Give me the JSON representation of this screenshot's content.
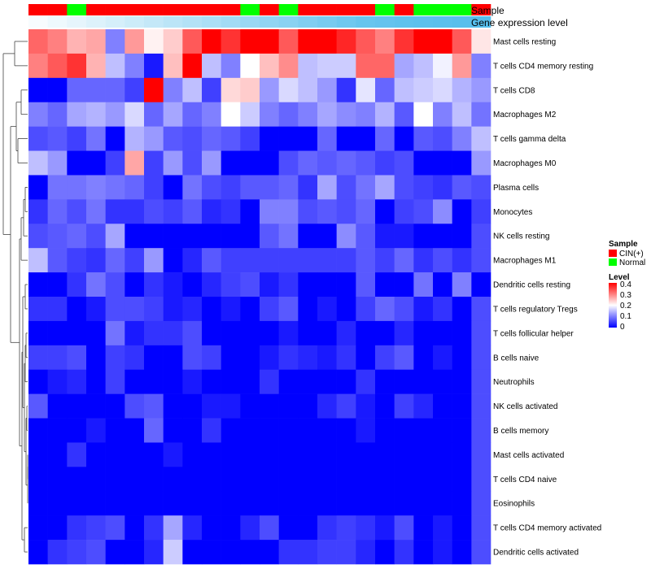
{
  "chart_data": {
    "type": "heatmap",
    "annotation_labels": {
      "sample": "Sample",
      "expression": "Gene expression level"
    },
    "legend": {
      "sample_title": "Sample",
      "groups": [
        {
          "label": "CIN(+)",
          "color": "#ff0000"
        },
        {
          "label": "Normal",
          "color": "#00ff00"
        }
      ],
      "level_title": "Level",
      "level_ticks": [
        "0.4",
        "0.3",
        "0.2",
        "0.1",
        "0"
      ],
      "level_range": [
        0,
        0.4
      ],
      "colors": {
        "low": "#0000ff",
        "mid": "#ffffff",
        "high": "#ff0000"
      }
    },
    "column_groups": [
      "CIN(+)",
      "CIN(+)",
      "Normal",
      "CIN(+)",
      "CIN(+)",
      "CIN(+)",
      "CIN(+)",
      "CIN(+)",
      "CIN(+)",
      "CIN(+)",
      "CIN(+)",
      "Normal",
      "CIN(+)",
      "Normal",
      "CIN(+)",
      "CIN(+)",
      "CIN(+)",
      "CIN(+)",
      "Normal",
      "CIN(+)",
      "Normal",
      "Normal",
      "Normal",
      "CIN(+)"
    ],
    "expression_level": [
      0.05,
      0.1,
      0.15,
      0.2,
      0.25,
      0.3,
      0.35,
      0.4,
      0.45,
      0.5,
      0.55,
      0.6,
      0.65,
      0.7,
      0.75,
      0.8,
      0.85,
      0.9,
      0.92,
      0.94,
      0.96,
      0.97,
      0.98,
      1.0
    ],
    "rows": [
      "Mast cells resting",
      "T cells CD4 memory resting",
      "T cells CD8",
      "Macrophages M2",
      "T cells gamma delta",
      "Macrophages M0",
      "Plasma cells",
      "Monocytes",
      "NK cells resting",
      "Macrophages M1",
      "Dendritic cells resting",
      "T cells regulatory  Tregs",
      "T cells follicular helper",
      "B cells naive",
      "Neutrophils",
      "NK cells activated",
      "B cells memory",
      "Mast cells activated",
      "T cells CD4 naive",
      "Eosinophils",
      "T cells CD4 memory activated",
      "Dendritic cells activated"
    ],
    "values": [
      [
        0.32,
        0.3,
        0.26,
        0.27,
        0.1,
        0.28,
        0.21,
        0.24,
        0.33,
        0.4,
        0.36,
        0.4,
        0.4,
        0.33,
        0.4,
        0.4,
        0.37,
        0.33,
        0.3,
        0.36,
        0.4,
        0.4,
        0.33,
        0.22
      ],
      [
        0.3,
        0.33,
        0.36,
        0.26,
        0.15,
        0.1,
        0.02,
        0.25,
        0.4,
        0.15,
        0.1,
        0.2,
        0.25,
        0.29,
        0.15,
        0.16,
        0.16,
        0.32,
        0.32,
        0.13,
        0.15,
        0.19,
        0.28,
        0.1
      ],
      [
        0.0,
        0.0,
        0.08,
        0.08,
        0.08,
        0.05,
        0.4,
        0.1,
        0.15,
        0.05,
        0.23,
        0.24,
        0.12,
        0.17,
        0.15,
        0.12,
        0.04,
        0.18,
        0.08,
        0.15,
        0.16,
        0.17,
        0.14,
        0.12
      ],
      [
        0.1,
        0.08,
        0.13,
        0.14,
        0.12,
        0.17,
        0.08,
        0.13,
        0.08,
        0.1,
        0.2,
        0.16,
        0.1,
        0.08,
        0.1,
        0.13,
        0.11,
        0.1,
        0.14,
        0.07,
        0.2,
        0.1,
        0.15,
        0.09
      ],
      [
        0.06,
        0.07,
        0.05,
        0.09,
        0.0,
        0.14,
        0.12,
        0.07,
        0.06,
        0.08,
        0.07,
        0.05,
        0.0,
        0.0,
        0.0,
        0.08,
        0.0,
        0.0,
        0.08,
        0.0,
        0.07,
        0.06,
        0.1,
        0.15
      ],
      [
        0.15,
        0.12,
        0.0,
        0.0,
        0.05,
        0.27,
        0.05,
        0.12,
        0.06,
        0.12,
        0.0,
        0.0,
        0.0,
        0.06,
        0.08,
        0.07,
        0.08,
        0.07,
        0.05,
        0.06,
        0.0,
        0.0,
        0.0,
        0.12
      ],
      [
        0.0,
        0.09,
        0.09,
        0.1,
        0.09,
        0.08,
        0.05,
        0.0,
        0.09,
        0.06,
        0.05,
        0.07,
        0.07,
        0.08,
        0.04,
        0.13,
        0.06,
        0.09,
        0.13,
        0.06,
        0.05,
        0.04,
        0.07,
        0.06
      ],
      [
        0.04,
        0.08,
        0.06,
        0.09,
        0.04,
        0.04,
        0.06,
        0.05,
        0.07,
        0.03,
        0.04,
        0.0,
        0.1,
        0.1,
        0.06,
        0.07,
        0.06,
        0.08,
        0.0,
        0.05,
        0.06,
        0.11,
        0.0,
        0.05
      ],
      [
        0.06,
        0.07,
        0.08,
        0.06,
        0.13,
        0.0,
        0.0,
        0.0,
        0.0,
        0.0,
        0.0,
        0.0,
        0.07,
        0.09,
        0.0,
        0.0,
        0.11,
        0.07,
        0.02,
        0.02,
        0.0,
        0.0,
        0.0,
        0.06
      ],
      [
        0.15,
        0.07,
        0.05,
        0.04,
        0.08,
        0.05,
        0.12,
        0.0,
        0.03,
        0.07,
        0.05,
        0.05,
        0.05,
        0.05,
        0.05,
        0.05,
        0.05,
        0.07,
        0.05,
        0.08,
        0.04,
        0.06,
        0.04,
        0.06
      ],
      [
        0.0,
        0.0,
        0.04,
        0.09,
        0.06,
        0.0,
        0.04,
        0.02,
        0.0,
        0.03,
        0.05,
        0.06,
        0.02,
        0.04,
        0.0,
        0.0,
        0.0,
        0.07,
        0.0,
        0.0,
        0.09,
        0.0,
        0.1,
        0.0
      ],
      [
        0.04,
        0.04,
        0.0,
        0.02,
        0.06,
        0.06,
        0.05,
        0.02,
        0.03,
        0.0,
        0.02,
        0.0,
        0.05,
        0.07,
        0.0,
        0.02,
        0.0,
        0.05,
        0.08,
        0.06,
        0.02,
        0.04,
        0.0,
        0.06
      ],
      [
        0.0,
        0.0,
        0.0,
        0.0,
        0.09,
        0.02,
        0.04,
        0.04,
        0.06,
        0.0,
        0.0,
        0.0,
        0.0,
        0.02,
        0.0,
        0.0,
        0.03,
        0.0,
        0.0,
        0.03,
        0.0,
        0.0,
        0.0,
        0.06
      ],
      [
        0.05,
        0.05,
        0.06,
        0.0,
        0.05,
        0.04,
        0.0,
        0.0,
        0.06,
        0.05,
        0.0,
        0.0,
        0.02,
        0.04,
        0.03,
        0.02,
        0.04,
        0.0,
        0.05,
        0.07,
        0.0,
        0.02,
        0.0,
        0.06
      ],
      [
        0.0,
        0.02,
        0.03,
        0.0,
        0.05,
        0.0,
        0.0,
        0.0,
        0.02,
        0.0,
        0.0,
        0.0,
        0.04,
        0.0,
        0.0,
        0.0,
        0.0,
        0.04,
        0.0,
        0.0,
        0.0,
        0.0,
        0.0,
        0.06
      ],
      [
        0.07,
        0.0,
        0.0,
        0.0,
        0.0,
        0.06,
        0.07,
        0.0,
        0.0,
        0.02,
        0.02,
        0.0,
        0.0,
        0.0,
        0.0,
        0.03,
        0.05,
        0.02,
        0.0,
        0.05,
        0.03,
        0.0,
        0.0,
        0.06
      ],
      [
        0.0,
        0.0,
        0.0,
        0.02,
        0.0,
        0.0,
        0.08,
        0.0,
        0.0,
        0.04,
        0.0,
        0.0,
        0.0,
        0.0,
        0.0,
        0.0,
        0.0,
        0.02,
        0.0,
        0.0,
        0.0,
        0.0,
        0.0,
        0.06
      ],
      [
        0.0,
        0.0,
        0.04,
        0.0,
        0.0,
        0.0,
        0.0,
        0.02,
        0.0,
        0.0,
        0.0,
        0.0,
        0.0,
        0.0,
        0.0,
        0.0,
        0.0,
        0.0,
        0.0,
        0.0,
        0.0,
        0.0,
        0.0,
        0.06
      ],
      [
        0.0,
        0.0,
        0.0,
        0.0,
        0.0,
        0.0,
        0.0,
        0.0,
        0.0,
        0.0,
        0.0,
        0.0,
        0.0,
        0.0,
        0.0,
        0.0,
        0.0,
        0.0,
        0.0,
        0.0,
        0.0,
        0.0,
        0.0,
        0.06
      ],
      [
        0.0,
        0.0,
        0.0,
        0.0,
        0.0,
        0.0,
        0.0,
        0.0,
        0.0,
        0.0,
        0.0,
        0.0,
        0.0,
        0.0,
        0.0,
        0.0,
        0.0,
        0.0,
        0.0,
        0.0,
        0.0,
        0.0,
        0.0,
        0.06
      ],
      [
        0.0,
        0.0,
        0.04,
        0.05,
        0.06,
        0.0,
        0.04,
        0.13,
        0.03,
        0.0,
        0.0,
        0.03,
        0.06,
        0.0,
        0.0,
        0.04,
        0.05,
        0.04,
        0.02,
        0.06,
        0.0,
        0.02,
        0.0,
        0.06
      ],
      [
        0.0,
        0.04,
        0.05,
        0.06,
        0.0,
        0.0,
        0.03,
        0.16,
        0.0,
        0.0,
        0.0,
        0.0,
        0.0,
        0.04,
        0.04,
        0.05,
        0.05,
        0.03,
        0.0,
        0.04,
        0.0,
        0.02,
        0.0,
        0.06
      ]
    ]
  }
}
